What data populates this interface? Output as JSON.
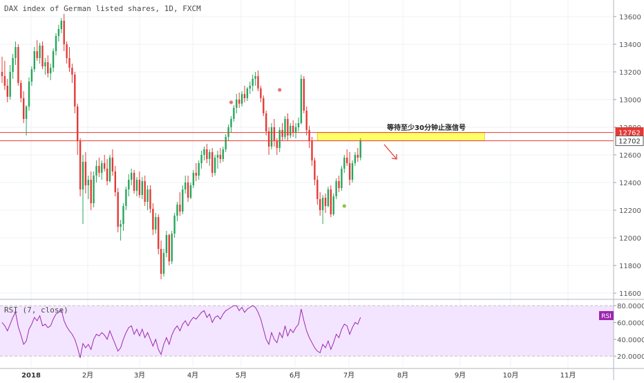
{
  "chart_data": [
    {
      "type": "candlestick",
      "title": "DAX index of German listed shares, 1D, FXCM",
      "y_axis": {
        "ticks": [
          11600,
          11800,
          12000,
          12200,
          12400,
          12600,
          12800,
          13000,
          13200,
          13400,
          13600
        ],
        "ylim": [
          11560,
          13720
        ],
        "side": "right"
      },
      "x_axis": {
        "tick_labels": [
          "2018",
          "2月",
          "3月",
          "4月",
          "5月",
          "6月",
          "7月",
          "8月",
          "9月",
          "10月",
          "11月"
        ]
      },
      "price_labels": [
        {
          "value": 12762,
          "label": "12762",
          "color": "#e53935"
        },
        {
          "value": 12702,
          "label": "12702",
          "color": "#555555"
        }
      ],
      "horizontal_lines": [
        12762,
        12702
      ],
      "zone": {
        "from": 12702,
        "to": 12762,
        "color": "#ffff66",
        "from_bar": 117,
        "to_bar": 179
      },
      "annotation": {
        "text": "等待至少30分钟止涨信号",
        "arrow": "down-right",
        "color": "#e53935"
      },
      "markers": [
        {
          "bar": 85,
          "price": 12980,
          "color": "#e57373"
        },
        {
          "bar": 103,
          "price": 13070,
          "color": "#e57373"
        },
        {
          "bar": 127,
          "price": 12230,
          "color": "#8bc34a"
        }
      ],
      "ohlc": [
        [
          13200,
          13310,
          13120,
          13170
        ],
        [
          13170,
          13280,
          13070,
          13100
        ],
        [
          13100,
          13150,
          12980,
          13020
        ],
        [
          13020,
          13250,
          13000,
          13200
        ],
        [
          13200,
          13330,
          13150,
          13300
        ],
        [
          13300,
          13420,
          13250,
          13380
        ],
        [
          13380,
          13400,
          13100,
          13120
        ],
        [
          13120,
          13140,
          12980,
          13010
        ],
        [
          13010,
          13060,
          12830,
          12860
        ],
        [
          12860,
          12960,
          12740,
          12950
        ],
        [
          12950,
          13160,
          12920,
          13130
        ],
        [
          13130,
          13240,
          13100,
          13220
        ],
        [
          13220,
          13380,
          13200,
          13350
        ],
        [
          13350,
          13430,
          13280,
          13300
        ],
        [
          13300,
          13410,
          13260,
          13390
        ],
        [
          13390,
          13420,
          13220,
          13240
        ],
        [
          13240,
          13300,
          13180,
          13270
        ],
        [
          13270,
          13320,
          13160,
          13190
        ],
        [
          13190,
          13260,
          13140,
          13230
        ],
        [
          13230,
          13370,
          13200,
          13350
        ],
        [
          13350,
          13480,
          13320,
          13460
        ],
        [
          13460,
          13540,
          13420,
          13510
        ],
        [
          13510,
          13590,
          13480,
          13570
        ],
        [
          13570,
          13620,
          13350,
          13400
        ],
        [
          13400,
          13420,
          13260,
          13300
        ],
        [
          13300,
          13380,
          13200,
          13230
        ],
        [
          13230,
          13260,
          13120,
          13180
        ],
        [
          13180,
          13200,
          12900,
          12950
        ],
        [
          12950,
          12970,
          12600,
          12700
        ],
        [
          12700,
          12720,
          12300,
          12350
        ],
        [
          12350,
          12600,
          12100,
          12550
        ],
        [
          12550,
          12620,
          12320,
          12380
        ],
        [
          12380,
          12450,
          12280,
          12420
        ],
        [
          12420,
          12480,
          12200,
          12250
        ],
        [
          12250,
          12480,
          12220,
          12450
        ],
        [
          12450,
          12560,
          12400,
          12520
        ],
        [
          12520,
          12580,
          12440,
          12470
        ],
        [
          12470,
          12560,
          12420,
          12540
        ],
        [
          12540,
          12600,
          12480,
          12500
        ],
        [
          12500,
          12570,
          12380,
          12410
        ],
        [
          12410,
          12600,
          12400,
          12580
        ],
        [
          12580,
          12640,
          12450,
          12480
        ],
        [
          12480,
          12520,
          12300,
          12330
        ],
        [
          12330,
          12360,
          12040,
          12080
        ],
        [
          12080,
          12130,
          11980,
          12100
        ],
        [
          12100,
          12250,
          12050,
          12230
        ],
        [
          12230,
          12370,
          12200,
          12350
        ],
        [
          12350,
          12460,
          12300,
          12420
        ],
        [
          12420,
          12500,
          12380,
          12470
        ],
        [
          12470,
          12490,
          12320,
          12340
        ],
        [
          12340,
          12440,
          12300,
          12420
        ],
        [
          12420,
          12480,
          12290,
          12310
        ],
        [
          12310,
          12440,
          12280,
          12410
        ],
        [
          12410,
          12450,
          12230,
          12260
        ],
        [
          12260,
          12380,
          12200,
          12350
        ],
        [
          12350,
          12380,
          12180,
          12210
        ],
        [
          12210,
          12250,
          12020,
          12060
        ],
        [
          12060,
          12180,
          12030,
          12150
        ],
        [
          12150,
          12170,
          11880,
          11920
        ],
        [
          11920,
          11980,
          11700,
          11740
        ],
        [
          11740,
          11920,
          11720,
          11890
        ],
        [
          11890,
          12050,
          11860,
          12020
        ],
        [
          12020,
          12030,
          11800,
          11830
        ],
        [
          11830,
          12050,
          11810,
          12030
        ],
        [
          12030,
          12180,
          12000,
          12160
        ],
        [
          12160,
          12260,
          12120,
          12240
        ],
        [
          12240,
          12330,
          12160,
          12190
        ],
        [
          12190,
          12380,
          12170,
          12350
        ],
        [
          12350,
          12450,
          12320,
          12400
        ],
        [
          12400,
          12450,
          12260,
          12290
        ],
        [
          12290,
          12400,
          12280,
          12380
        ],
        [
          12380,
          12490,
          12360,
          12470
        ],
        [
          12470,
          12540,
          12410,
          12450
        ],
        [
          12450,
          12560,
          12420,
          12540
        ],
        [
          12540,
          12630,
          12500,
          12600
        ],
        [
          12600,
          12660,
          12560,
          12640
        ],
        [
          12640,
          12680,
          12540,
          12570
        ],
        [
          12570,
          12640,
          12520,
          12620
        ],
        [
          12620,
          12650,
          12440,
          12470
        ],
        [
          12470,
          12600,
          12450,
          12580
        ],
        [
          12580,
          12630,
          12500,
          12600
        ],
        [
          12600,
          12650,
          12540,
          12570
        ],
        [
          12570,
          12660,
          12550,
          12640
        ],
        [
          12640,
          12750,
          12620,
          12730
        ],
        [
          12730,
          12820,
          12700,
          12800
        ],
        [
          12800,
          12880,
          12760,
          12860
        ],
        [
          12860,
          12960,
          12840,
          12940
        ],
        [
          12940,
          13040,
          12900,
          13000
        ],
        [
          13000,
          13050,
          12940,
          12970
        ],
        [
          12970,
          13060,
          12950,
          13040
        ],
        [
          13040,
          13100,
          12980,
          13010
        ],
        [
          13010,
          13090,
          12990,
          13080
        ],
        [
          13080,
          13130,
          13040,
          13100
        ],
        [
          13100,
          13180,
          13060,
          13150
        ],
        [
          13150,
          13200,
          13100,
          13170
        ],
        [
          13170,
          13210,
          13060,
          13080
        ],
        [
          13080,
          13100,
          12980,
          13010
        ],
        [
          13010,
          13030,
          12880,
          12900
        ],
        [
          12900,
          12920,
          12740,
          12770
        ],
        [
          12770,
          12800,
          12600,
          12660
        ],
        [
          12660,
          12830,
          12640,
          12800
        ],
        [
          12800,
          12860,
          12660,
          12700
        ],
        [
          12700,
          12720,
          12600,
          12650
        ],
        [
          12650,
          12800,
          12620,
          12780
        ],
        [
          12780,
          12830,
          12700,
          12730
        ],
        [
          12730,
          12880,
          12710,
          12860
        ],
        [
          12860,
          12900,
          12700,
          12740
        ],
        [
          12740,
          12830,
          12720,
          12810
        ],
        [
          12810,
          12850,
          12730,
          12760
        ],
        [
          12760,
          12830,
          12720,
          12800
        ],
        [
          12800,
          12870,
          12770,
          12830
        ],
        [
          12830,
          13180,
          12820,
          13150
        ],
        [
          13150,
          13170,
          12900,
          12920
        ],
        [
          12920,
          12950,
          12740,
          12780
        ],
        [
          12780,
          12810,
          12650,
          12700
        ],
        [
          12700,
          12730,
          12520,
          12560
        ],
        [
          12560,
          12580,
          12380,
          12420
        ],
        [
          12420,
          12450,
          12240,
          12280
        ],
        [
          12280,
          12330,
          12160,
          12200
        ],
        [
          12200,
          12310,
          12100,
          12290
        ],
        [
          12290,
          12320,
          12180,
          12230
        ],
        [
          12230,
          12370,
          12220,
          12350
        ],
        [
          12350,
          12380,
          12150,
          12170
        ],
        [
          12170,
          12320,
          12160,
          12300
        ],
        [
          12300,
          12430,
          12280,
          12410
        ],
        [
          12410,
          12450,
          12330,
          12360
        ],
        [
          12360,
          12520,
          12340,
          12500
        ],
        [
          12500,
          12600,
          12470,
          12580
        ],
        [
          12580,
          12640,
          12520,
          12540
        ],
        [
          12540,
          12620,
          12380,
          12420
        ],
        [
          12420,
          12560,
          12400,
          12540
        ],
        [
          12540,
          12620,
          12520,
          12600
        ],
        [
          12600,
          12650,
          12550,
          12580
        ],
        [
          12580,
          12720,
          12560,
          12700
        ]
      ]
    },
    {
      "type": "line",
      "title": "RSI (7, close)",
      "legend_badge": "RSI",
      "y_axis": {
        "ticks": [
          20,
          40,
          60,
          80
        ],
        "tick_labels": [
          "20.0000",
          "40.0000",
          "60.0000",
          "80.0000"
        ],
        "ylim": [
          7,
          85
        ],
        "side": "right"
      },
      "band": {
        "upper": 80,
        "lower": 20
      },
      "colors": {
        "line": "#9c27b0",
        "band_fill": "#f3e5ff",
        "band_border": "#c0c0c0"
      },
      "values": [
        60,
        56,
        50,
        58,
        66,
        72,
        55,
        45,
        34,
        38,
        52,
        58,
        66,
        62,
        68,
        56,
        58,
        54,
        56,
        64,
        70,
        72,
        75,
        62,
        55,
        50,
        46,
        40,
        30,
        18,
        35,
        30,
        34,
        28,
        40,
        46,
        44,
        48,
        45,
        40,
        50,
        42,
        34,
        26,
        30,
        40,
        48,
        54,
        56,
        46,
        52,
        44,
        52,
        42,
        48,
        40,
        32,
        40,
        28,
        22,
        34,
        42,
        34,
        45,
        52,
        56,
        50,
        58,
        62,
        56,
        62,
        66,
        64,
        68,
        72,
        74,
        66,
        70,
        60,
        66,
        68,
        64,
        70,
        74,
        76,
        78,
        80,
        80,
        74,
        78,
        72,
        76,
        78,
        80,
        78,
        72,
        64,
        52,
        40,
        34,
        48,
        40,
        36,
        48,
        42,
        56,
        44,
        52,
        48,
        54,
        58,
        76,
        62,
        50,
        42,
        36,
        30,
        26,
        24,
        34,
        30,
        38,
        28,
        36,
        46,
        42,
        52,
        58,
        56,
        46,
        54,
        60,
        58,
        66
      ]
    }
  ]
}
